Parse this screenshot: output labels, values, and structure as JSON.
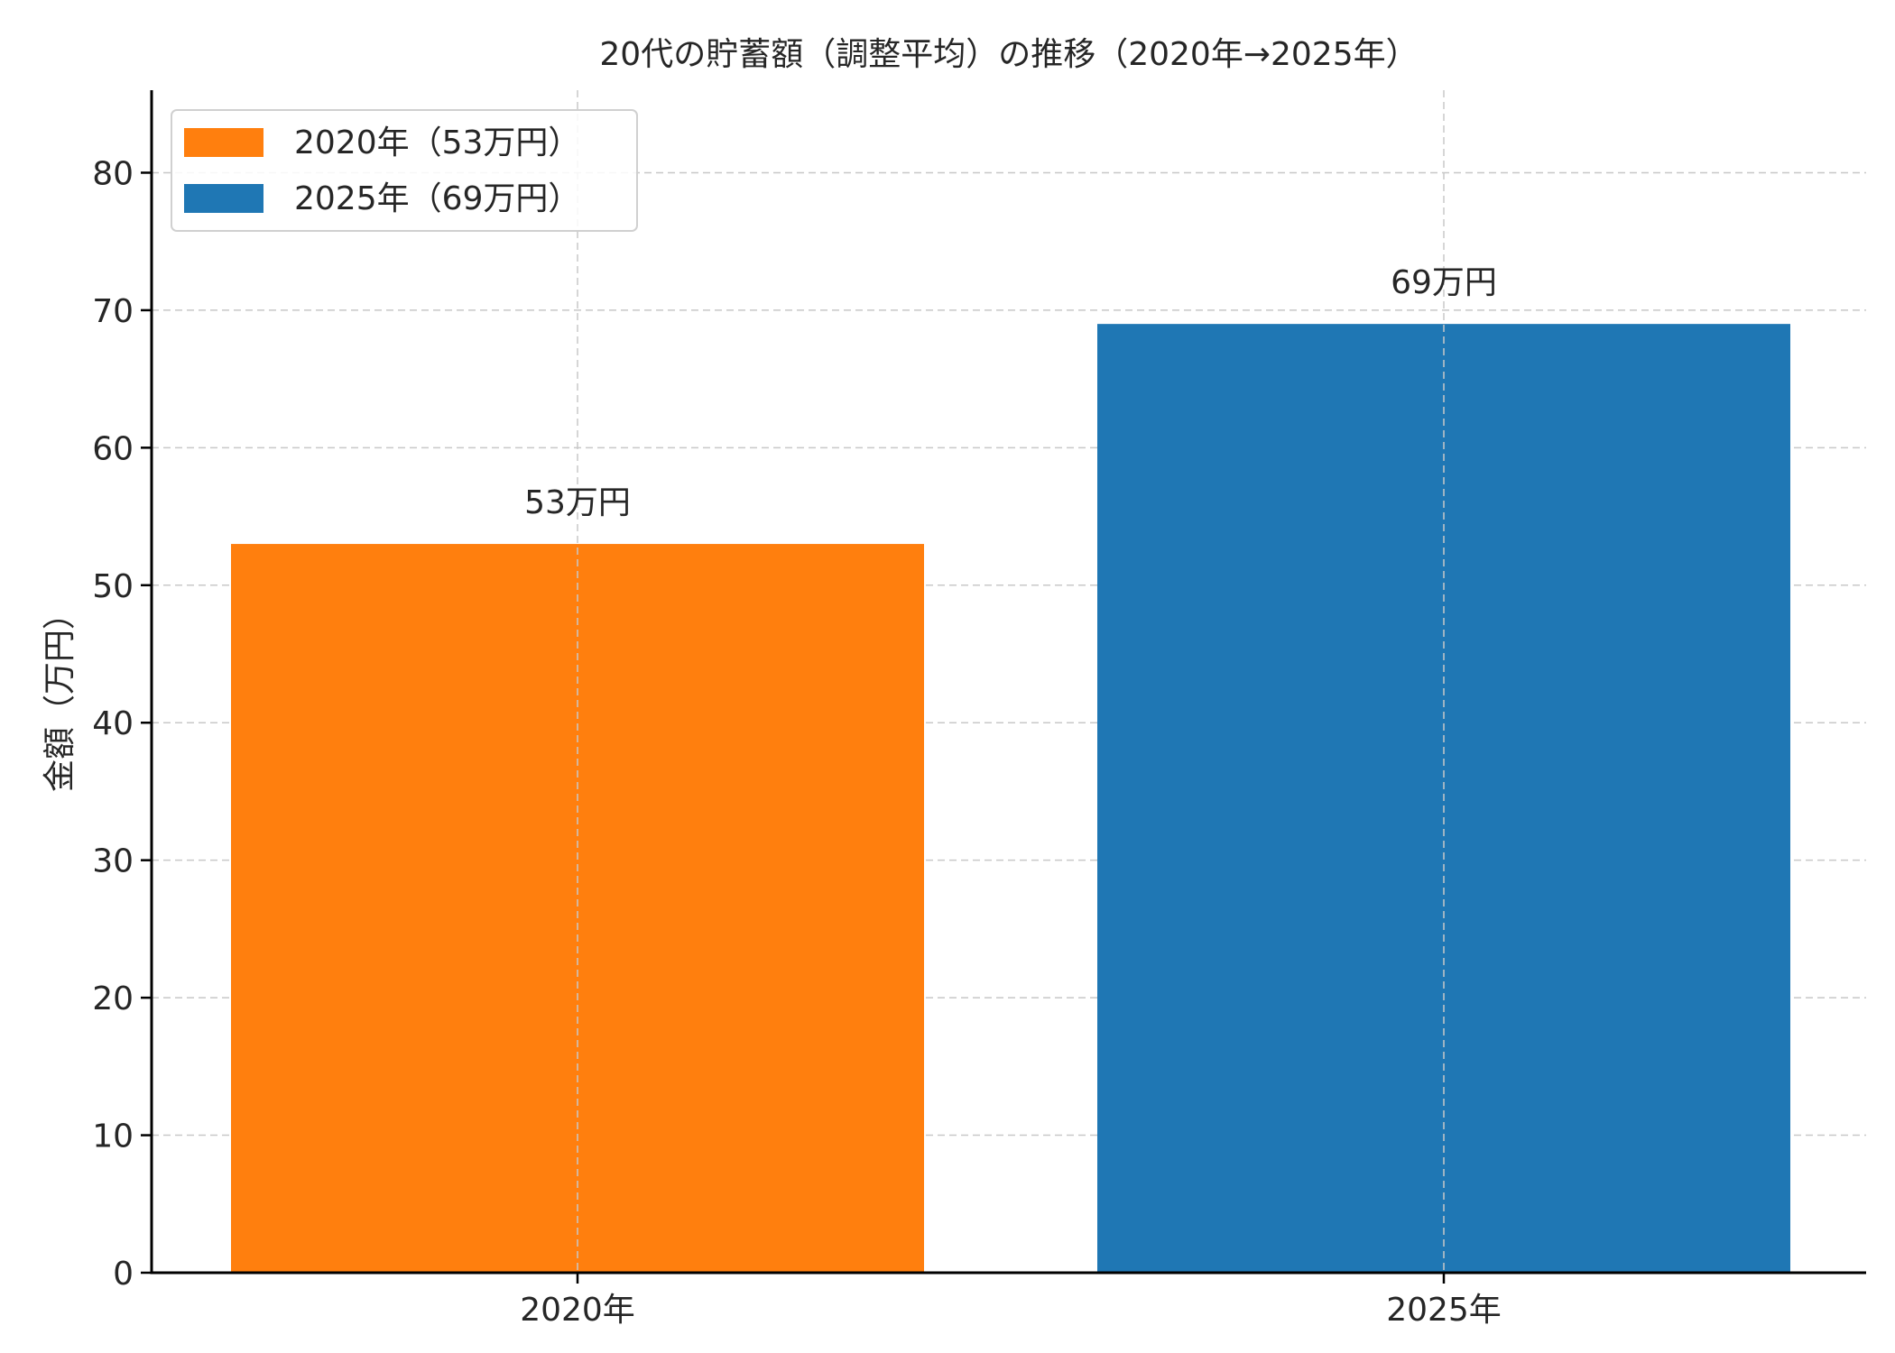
{
  "chart_data": {
    "type": "bar",
    "title": "20代の貯蓄額（調整平均）の推移（2020年→2025年）",
    "xlabel": "",
    "ylabel": "金額（万円）",
    "categories": [
      "2020年",
      "2025年"
    ],
    "values": [
      53,
      69
    ],
    "data_labels": [
      "53万円",
      "69万円"
    ],
    "colors": [
      "#ff7f0e",
      "#1f77b4"
    ],
    "ylim": [
      0,
      86
    ],
    "yticks": [
      0,
      10,
      20,
      30,
      40,
      50,
      60,
      70,
      80
    ],
    "grid": true,
    "legend": {
      "placement": "top-left",
      "entries": [
        "2020年（53万円）",
        "2025年（69万円）"
      ]
    }
  }
}
